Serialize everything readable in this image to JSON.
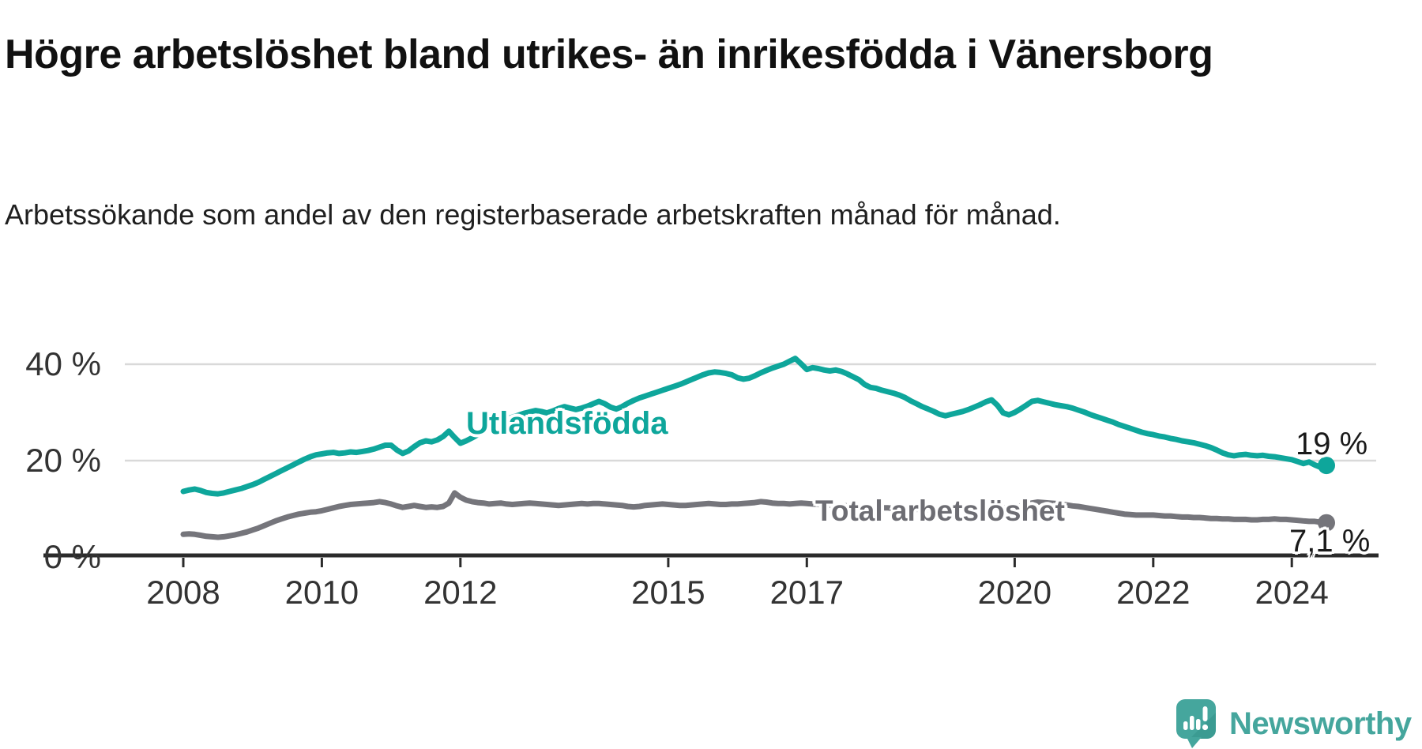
{
  "header": {
    "title": "Högre arbetslöshet bland utrikes- än inrikesfödda i Vänersborg",
    "subtitle": "Arbetssökande som andel av den registerbaserade arbetskraften månad för månad."
  },
  "footer": {
    "brand": "Newsworthy",
    "brand_color": "#45A69D"
  },
  "chart_data": {
    "type": "line",
    "title": "Högre arbetslöshet bland utrikes- än inrikesfödda i Vänersborg",
    "subtitle": "Arbetssökande som andel av den registerbaserade arbetskraften månad för månad.",
    "unit": "%",
    "grid": "horizontal-only",
    "legend_position": "inline-on-line",
    "x_start_year": 2008,
    "points_per_year": 12,
    "ylim": [
      0,
      44
    ],
    "y_ticks": [
      {
        "value": 40,
        "label": "40 %"
      },
      {
        "value": 20,
        "label": "20 %"
      },
      {
        "value": 0,
        "label": "0 %"
      }
    ],
    "x_ticks": [
      {
        "year": 2008,
        "label": "2008"
      },
      {
        "year": 2010,
        "label": "2010"
      },
      {
        "year": 2012,
        "label": "2012"
      },
      {
        "year": 2015,
        "label": "2015"
      },
      {
        "year": 2017,
        "label": "2017"
      },
      {
        "year": 2020,
        "label": "2020"
      },
      {
        "year": 2022,
        "label": "2022"
      },
      {
        "year": 2024,
        "label": "2024"
      }
    ],
    "series": [
      {
        "name": "Utlandsfödda",
        "color": "#0EA69B",
        "end_label": "19 %",
        "values": [
          13.6,
          13.9,
          14.1,
          13.8,
          13.4,
          13.2,
          13.1,
          13.3,
          13.6,
          13.9,
          14.2,
          14.6,
          15.0,
          15.5,
          16.1,
          16.7,
          17.3,
          17.9,
          18.5,
          19.1,
          19.7,
          20.3,
          20.8,
          21.2,
          21.4,
          21.6,
          21.7,
          21.5,
          21.6,
          21.8,
          21.7,
          21.9,
          22.1,
          22.4,
          22.8,
          23.2,
          23.2,
          22.2,
          21.5,
          22.0,
          22.9,
          23.7,
          24.1,
          23.9,
          24.3,
          25.0,
          26.1,
          24.8,
          23.6,
          24.1,
          24.7,
          25.4,
          26.1,
          26.8,
          27.5,
          28.1,
          28.6,
          29.0,
          29.4,
          29.8,
          30.1,
          30.4,
          30.2,
          29.9,
          30.3,
          30.8,
          31.2,
          30.9,
          30.6,
          30.9,
          31.3,
          31.8,
          32.3,
          31.8,
          31.1,
          30.7,
          31.2,
          31.9,
          32.5,
          33.0,
          33.4,
          33.8,
          34.2,
          34.6,
          35.0,
          35.4,
          35.8,
          36.3,
          36.8,
          37.3,
          37.8,
          38.2,
          38.4,
          38.3,
          38.1,
          37.8,
          37.2,
          36.9,
          37.1,
          37.6,
          38.2,
          38.7,
          39.2,
          39.6,
          40.0,
          40.6,
          41.2,
          40.1,
          38.9,
          39.3,
          39.1,
          38.8,
          38.6,
          38.8,
          38.5,
          38.0,
          37.4,
          36.8,
          35.8,
          35.2,
          35.0,
          34.6,
          34.3,
          34.0,
          33.6,
          33.1,
          32.4,
          31.8,
          31.2,
          30.7,
          30.2,
          29.6,
          29.3,
          29.6,
          29.9,
          30.2,
          30.6,
          31.1,
          31.6,
          32.2,
          32.6,
          31.5,
          29.9,
          29.5,
          30.0,
          30.7,
          31.5,
          32.3,
          32.5,
          32.2,
          31.9,
          31.6,
          31.4,
          31.2,
          30.9,
          30.5,
          30.1,
          29.6,
          29.2,
          28.8,
          28.4,
          28.0,
          27.5,
          27.1,
          26.7,
          26.3,
          25.9,
          25.6,
          25.4,
          25.1,
          24.9,
          24.6,
          24.4,
          24.1,
          23.9,
          23.7,
          23.4,
          23.1,
          22.7,
          22.2,
          21.6,
          21.2,
          21.0,
          21.2,
          21.3,
          21.1,
          21.0,
          21.1,
          20.9,
          20.8,
          20.6,
          20.4,
          20.2,
          19.8,
          19.4,
          19.7,
          19.1,
          18.6,
          19.0
        ]
      },
      {
        "name": "Total arbetslöshet",
        "color": "#75757B",
        "end_label": "7,1 %",
        "values": [
          4.7,
          4.8,
          4.7,
          4.5,
          4.3,
          4.2,
          4.1,
          4.2,
          4.4,
          4.6,
          4.9,
          5.2,
          5.6,
          6.0,
          6.5,
          7.0,
          7.5,
          7.9,
          8.3,
          8.6,
          8.9,
          9.1,
          9.3,
          9.4,
          9.6,
          9.9,
          10.2,
          10.5,
          10.7,
          10.9,
          11.0,
          11.1,
          11.2,
          11.3,
          11.5,
          11.3,
          11.0,
          10.6,
          10.3,
          10.5,
          10.7,
          10.5,
          10.3,
          10.4,
          10.3,
          10.5,
          11.2,
          13.3,
          12.4,
          11.8,
          11.5,
          11.3,
          11.2,
          11.0,
          11.1,
          11.2,
          11.0,
          10.9,
          11.0,
          11.1,
          11.2,
          11.1,
          11.0,
          10.9,
          10.8,
          10.7,
          10.8,
          10.9,
          11.0,
          11.1,
          11.0,
          11.1,
          11.1,
          11.0,
          10.9,
          10.8,
          10.7,
          10.5,
          10.4,
          10.5,
          10.7,
          10.8,
          10.9,
          11.0,
          10.9,
          10.8,
          10.7,
          10.7,
          10.8,
          10.9,
          11.0,
          11.1,
          11.0,
          10.9,
          10.9,
          11.0,
          11.0,
          11.1,
          11.2,
          11.3,
          11.5,
          11.4,
          11.2,
          11.1,
          11.1,
          11.0,
          11.1,
          11.2,
          11.1,
          11.0,
          10.9,
          10.8,
          10.8,
          10.7,
          10.6,
          10.6,
          10.5,
          10.4,
          10.4,
          10.3,
          10.3,
          10.2,
          10.2,
          10.1,
          10.1,
          10.0,
          10.0,
          9.9,
          9.9,
          9.8,
          9.8,
          9.9,
          9.9,
          10.0,
          10.0,
          10.1,
          10.1,
          10.2,
          10.2,
          10.3,
          10.3,
          10.2,
          10.2,
          10.3,
          10.4,
          10.6,
          10.9,
          11.2,
          11.4,
          11.3,
          11.2,
          11.1,
          11.0,
          10.8,
          10.6,
          10.5,
          10.3,
          10.1,
          9.9,
          9.7,
          9.5,
          9.3,
          9.1,
          8.9,
          8.8,
          8.7,
          8.7,
          8.7,
          8.7,
          8.6,
          8.5,
          8.5,
          8.4,
          8.3,
          8.3,
          8.2,
          8.2,
          8.1,
          8.0,
          8.0,
          7.9,
          7.9,
          7.8,
          7.8,
          7.8,
          7.7,
          7.7,
          7.8,
          7.8,
          7.9,
          7.8,
          7.8,
          7.7,
          7.6,
          7.5,
          7.4,
          7.4,
          7.2,
          7.1
        ]
      }
    ]
  }
}
